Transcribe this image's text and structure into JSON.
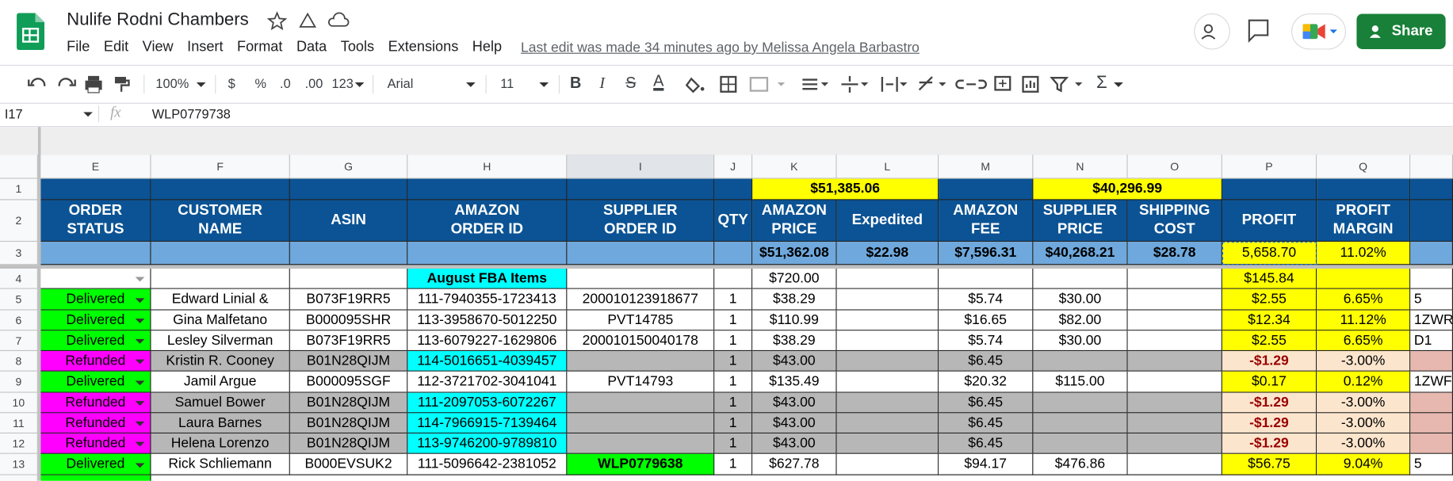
{
  "header": {
    "title": "Nulife Rodni Chambers",
    "menus": [
      "File",
      "Edit",
      "View",
      "Insert",
      "Format",
      "Data",
      "Tools",
      "Extensions",
      "Help"
    ],
    "last_edit": "Last edit was made 34 minutes ago by Melissa Angela Barbastro",
    "share": "Share"
  },
  "toolbar": {
    "zoom": "100%",
    "currency": "$",
    "percent": "%",
    "decrease_decimals": ".0",
    "increase_decimals": ".00",
    "number_format": "123",
    "font": "Arial",
    "font_size": "11",
    "bold": "B",
    "italic": "I",
    "strikethrough": "S",
    "text_color": "A",
    "function": "Σ"
  },
  "formula_bar": {
    "cell_ref": "I17",
    "fx": "fx",
    "formula": "WLP0779738"
  },
  "sheet": {
    "columns": [
      "E",
      "F",
      "G",
      "H",
      "I",
      "J",
      "K",
      "L",
      "M",
      "N",
      "O",
      "P",
      "Q"
    ],
    "row_numbers": [
      1,
      2,
      3,
      4,
      5,
      6,
      7,
      8,
      9,
      10,
      11,
      12,
      13
    ],
    "rows": [
      {
        "cells": [
          null,
          null,
          null,
          null,
          null,
          null,
          "$51,385.06",
          null,
          null,
          "$40,296.99",
          null,
          null,
          null,
          null
        ],
        "fills": [
          "#0b5394",
          "#0b5394",
          "#0b5394",
          "#0b5394",
          "#0b5394",
          "#0b5394",
          "#ffff00",
          "#ffff00",
          "#0b5394",
          "#ffff00",
          "#ffff00",
          "#0b5394",
          "#0b5394",
          "#0b5394"
        ]
      },
      {
        "cells": [
          "ORDER\nSTATUS",
          "CUSTOMER\nNAME",
          "ASIN",
          "AMAZON\nORDER ID",
          "SUPPLIER\nORDER ID",
          "QTY",
          "AMAZON\nPRICE",
          "Expedited",
          "AMAZON\nFEE",
          "SUPPLIER\nPRICE",
          "SHIPPING\nCOST",
          "PROFIT",
          "PROFIT\nMARGIN",
          null
        ],
        "fills": [
          "#0b5394",
          "#0b5394",
          "#0b5394",
          "#0b5394",
          "#0b5394",
          "#0b5394",
          "#0b5394",
          "#0b5394",
          "#0b5394",
          "#0b5394",
          "#0b5394",
          "#0b5394",
          "#0b5394",
          "#0b5394"
        ],
        "text_color": "#ffffff"
      },
      {
        "cells": [
          null,
          null,
          null,
          null,
          null,
          null,
          "$51,362.08",
          "$22.98",
          "$7,596.31",
          "$40,268.21",
          "$28.78",
          "5,658.70",
          "11.02%",
          null
        ],
        "fills": [
          "#6fa8dc",
          "#6fa8dc",
          "#6fa8dc",
          "#6fa8dc",
          "#6fa8dc",
          "#6fa8dc",
          "#6fa8dc",
          "#6fa8dc",
          "#6fa8dc",
          "#6fa8dc",
          "#6fa8dc",
          "#ffff00",
          "#ffff00",
          "#6fa8dc"
        ]
      },
      {
        "cells": [
          null,
          null,
          null,
          "August FBA Items",
          null,
          null,
          "$720.00",
          null,
          null,
          null,
          null,
          "$145.84",
          null,
          null
        ],
        "fills": [
          "#ffffff",
          "#ffffff",
          "#ffffff",
          "#00ffff",
          "#ffffff",
          "#ffffff",
          "#ffffff",
          "#ffffff",
          "#ffffff",
          "#ffffff",
          "#ffffff",
          "#ffff00",
          "#ffff00",
          "#ffffff"
        ]
      },
      {
        "cells": [
          "Delivered",
          "Edward Linial &",
          "B073F19RR5",
          "111-7940355-1723413",
          "200010123918677",
          "1",
          "$38.29",
          null,
          "$5.74",
          "$30.00",
          null,
          "$2.55",
          "6.65%",
          "5"
        ],
        "fills": [
          "#00ff00",
          "#ffffff",
          "#ffffff",
          "#ffffff",
          "#ffffff",
          "#ffffff",
          "#ffffff",
          "#ffffff",
          "#ffffff",
          "#ffffff",
          "#ffffff",
          "#ffff00",
          "#ffff00",
          "#ffffff"
        ]
      },
      {
        "cells": [
          "Delivered",
          "Gina Malfetano",
          "B000095SHR",
          "113-3958670-5012250",
          "PVT14785",
          "1",
          "$110.99",
          null,
          "$16.65",
          "$82.00",
          null,
          "$12.34",
          "11.12%",
          "1ZWR"
        ],
        "fills": [
          "#00ff00",
          "#ffffff",
          "#ffffff",
          "#ffffff",
          "#ffffff",
          "#ffffff",
          "#ffffff",
          "#ffffff",
          "#ffffff",
          "#ffffff",
          "#ffffff",
          "#ffff00",
          "#ffff00",
          "#ffffff"
        ]
      },
      {
        "cells": [
          "Delivered",
          "Lesley Silverman",
          "B073F19RR5",
          "113-6079227-1629806",
          "200010150040178",
          "1",
          "$38.29",
          null,
          "$5.74",
          "$30.00",
          null,
          "$2.55",
          "6.65%",
          "D1"
        ],
        "fills": [
          "#00ff00",
          "#ffffff",
          "#ffffff",
          "#ffffff",
          "#ffffff",
          "#ffffff",
          "#ffffff",
          "#ffffff",
          "#ffffff",
          "#ffffff",
          "#ffffff",
          "#ffff00",
          "#ffff00",
          "#ffffff"
        ]
      },
      {
        "cells": [
          "Refunded",
          "Kristin R. Cooney",
          "B01N28QIJM",
          "114-5016651-4039457",
          null,
          "1",
          "$43.00",
          null,
          "$6.45",
          null,
          null,
          "-$1.29",
          "-3.00%",
          null
        ],
        "fills": [
          "#ff00ff",
          "#b7b7b7",
          "#b7b7b7",
          "#00ffff",
          "#b7b7b7",
          "#b7b7b7",
          "#b7b7b7",
          "#b7b7b7",
          "#b7b7b7",
          "#b7b7b7",
          "#b7b7b7",
          "#fce5cd",
          "#fce5cd",
          "#e6b8af"
        ],
        "profit_color": "#990000"
      },
      {
        "cells": [
          "Delivered",
          "Jamil Argue",
          "B000095SGF",
          "112-3721702-3041041",
          "PVT14793",
          "1",
          "$135.49",
          null,
          "$20.32",
          "$115.00",
          null,
          "$0.17",
          "0.12%",
          "1ZWF"
        ],
        "fills": [
          "#00ff00",
          "#ffffff",
          "#ffffff",
          "#ffffff",
          "#ffffff",
          "#ffffff",
          "#ffffff",
          "#ffffff",
          "#ffffff",
          "#ffffff",
          "#ffffff",
          "#ffff00",
          "#ffff00",
          "#ffffff"
        ]
      },
      {
        "cells": [
          "Refunded",
          "Samuel Bower",
          "B01N28QIJM",
          "111-2097053-6072267",
          null,
          "1",
          "$43.00",
          null,
          "$6.45",
          null,
          null,
          "-$1.29",
          "-3.00%",
          null
        ],
        "fills": [
          "#ff00ff",
          "#b7b7b7",
          "#b7b7b7",
          "#00ffff",
          "#b7b7b7",
          "#b7b7b7",
          "#b7b7b7",
          "#b7b7b7",
          "#b7b7b7",
          "#b7b7b7",
          "#b7b7b7",
          "#fce5cd",
          "#fce5cd",
          "#e6b8af"
        ],
        "profit_color": "#990000"
      },
      {
        "cells": [
          "Refunded",
          "Laura Barnes",
          "B01N28QIJM",
          "114-7966915-7139464",
          null,
          "1",
          "$43.00",
          null,
          "$6.45",
          null,
          null,
          "-$1.29",
          "-3.00%",
          null
        ],
        "fills": [
          "#ff00ff",
          "#b7b7b7",
          "#b7b7b7",
          "#00ffff",
          "#b7b7b7",
          "#b7b7b7",
          "#b7b7b7",
          "#b7b7b7",
          "#b7b7b7",
          "#b7b7b7",
          "#b7b7b7",
          "#fce5cd",
          "#fce5cd",
          "#e6b8af"
        ],
        "profit_color": "#990000"
      },
      {
        "cells": [
          "Refunded",
          "Helena Lorenzo",
          "B01N28QIJM",
          "113-9746200-9789810",
          null,
          "1",
          "$43.00",
          null,
          "$6.45",
          null,
          null,
          "-$1.29",
          "-3.00%",
          null
        ],
        "fills": [
          "#ff00ff",
          "#b7b7b7",
          "#b7b7b7",
          "#00ffff",
          "#b7b7b7",
          "#b7b7b7",
          "#b7b7b7",
          "#b7b7b7",
          "#b7b7b7",
          "#b7b7b7",
          "#b7b7b7",
          "#fce5cd",
          "#fce5cd",
          "#e6b8af"
        ],
        "profit_color": "#990000"
      },
      {
        "cells": [
          "Delivered",
          "Rick Schliemann",
          "B000EVSUK2",
          "111-5096642-2381052",
          "WLP0779638",
          "1",
          "$627.78",
          null,
          "$94.17",
          "$476.86",
          null,
          "$56.75",
          "9.04%",
          "5"
        ],
        "fills": [
          "#00ff00",
          "#ffffff",
          "#ffffff",
          "#ffffff",
          "#00ff00",
          "#ffffff",
          "#ffffff",
          "#ffffff",
          "#ffffff",
          "#ffffff",
          "#ffffff",
          "#ffff00",
          "#ffff00",
          "#ffffff"
        ]
      }
    ]
  }
}
